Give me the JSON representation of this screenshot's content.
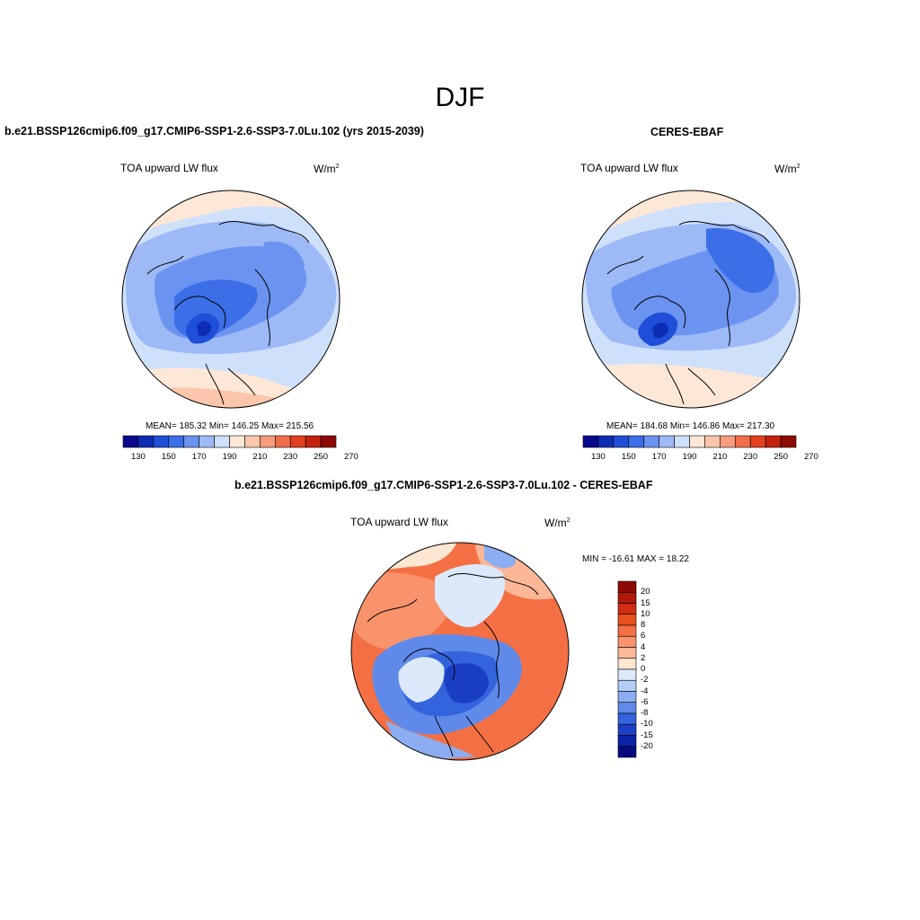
{
  "figure": {
    "title": "DJF"
  },
  "chart_data": [
    {
      "type": "heatmap",
      "projection": "polar-stereographic-north",
      "title": "b.e21.BSSP126cmip6.f09_g17.CMIP6-SSP1-2.6-SSP3-7.0Lu.102 (yrs 2015-2039)",
      "variable": "TOA upward LW flux",
      "unit_base": "W/m",
      "unit_exp": "2",
      "stats_text": "MEAN= 185.32  Min= 146.25  Max= 215.56",
      "mean": 185.32,
      "min": 146.25,
      "max": 215.56,
      "colorbar": {
        "orientation": "horizontal",
        "tick_labels": [
          "130",
          "150",
          "170",
          "190",
          "210",
          "230",
          "250",
          "270"
        ],
        "colors": [
          "#08088c",
          "#0d2cb4",
          "#1f4fd8",
          "#3c6ee8",
          "#6b93f0",
          "#9db9f6",
          "#cfe0fb",
          "#fde8d8",
          "#fbc6ab",
          "#f79c7c",
          "#f06e4c",
          "#e2401f",
          "#c4200f",
          "#8e0a06"
        ]
      }
    },
    {
      "type": "heatmap",
      "projection": "polar-stereographic-north",
      "title": "CERES-EBAF",
      "variable": "TOA upward LW flux",
      "unit_base": "W/m",
      "unit_exp": "2",
      "stats_text": "MEAN= 184.68  Min= 146.86  Max= 217.30",
      "mean": 184.68,
      "min": 146.86,
      "max": 217.3,
      "colorbar": {
        "orientation": "horizontal",
        "tick_labels": [
          "130",
          "150",
          "170",
          "190",
          "210",
          "230",
          "250",
          "270"
        ],
        "colors": [
          "#08088c",
          "#0d2cb4",
          "#1f4fd8",
          "#3c6ee8",
          "#6b93f0",
          "#9db9f6",
          "#cfe0fb",
          "#fde8d8",
          "#fbc6ab",
          "#f79c7c",
          "#f06e4c",
          "#e2401f",
          "#c4200f",
          "#8e0a06"
        ]
      }
    },
    {
      "type": "heatmap",
      "projection": "polar-stereographic-north",
      "title": "b.e21.BSSP126cmip6.f09_g17.CMIP6-SSP1-2.6-SSP3-7.0Lu.102 - CERES-EBAF",
      "variable": "TOA upward LW flux",
      "unit_base": "W/m",
      "unit_exp": "2",
      "stats_text": "MIN = -16.61 MAX =  18.22",
      "min": -16.61,
      "max": 18.22,
      "colorbar": {
        "orientation": "vertical",
        "tick_labels": [
          "20",
          "15",
          "10",
          "8",
          "6",
          "4",
          "2",
          "0",
          "-2",
          "-4",
          "-6",
          "-8",
          "-10",
          "-15",
          "-20"
        ],
        "colors": [
          "#8e0a06",
          "#b0180a",
          "#d02d12",
          "#e8501f",
          "#f47044",
          "#f8936c",
          "#fbb796",
          "#fde6d2",
          "#dce9fb",
          "#b5cef7",
          "#8cadf1",
          "#5f8aea",
          "#3364dd",
          "#1b3fc4",
          "#0c22a6",
          "#050a7e"
        ]
      }
    }
  ]
}
